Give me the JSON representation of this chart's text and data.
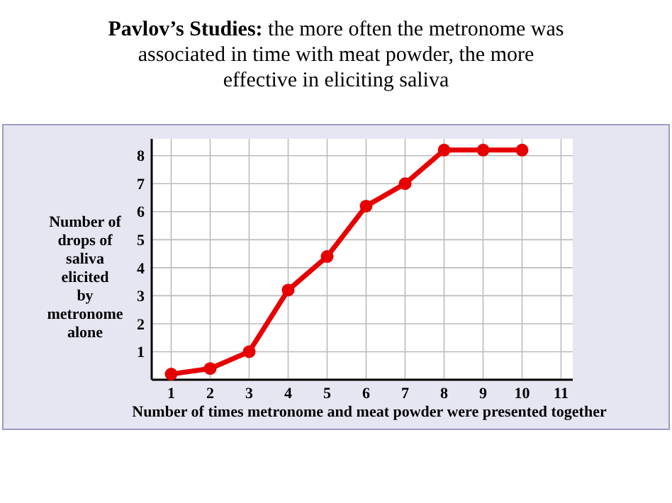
{
  "chart_data": {
    "type": "line",
    "title": "Pavlov’s Studies:",
    "subtitle": "the more often the metronome was associated in time with meat powder, the more effective in eliciting saliva",
    "xlabel": "Number of times metronome and meat powder were presented together",
    "ylabel": "Number of drops of saliva elicited by metronome alone",
    "x": [
      1,
      2,
      3,
      4,
      5,
      6,
      7,
      8,
      9,
      10
    ],
    "series": [
      {
        "color": "#e60000",
        "values": [
          0.2,
          0.4,
          1.0,
          3.2,
          4.4,
          6.2,
          7.0,
          8.2,
          8.2,
          8.2
        ]
      }
    ],
    "xlim": [
      0.5,
      11.3
    ],
    "ylim": [
      0,
      8.6
    ],
    "xticks": [
      1,
      2,
      3,
      4,
      5,
      6,
      7,
      8,
      9,
      10,
      11
    ],
    "yticks": [
      1,
      2,
      3,
      4,
      5,
      6,
      7,
      8
    ],
    "grid": true,
    "marker": "circle",
    "line_style": "solid"
  }
}
